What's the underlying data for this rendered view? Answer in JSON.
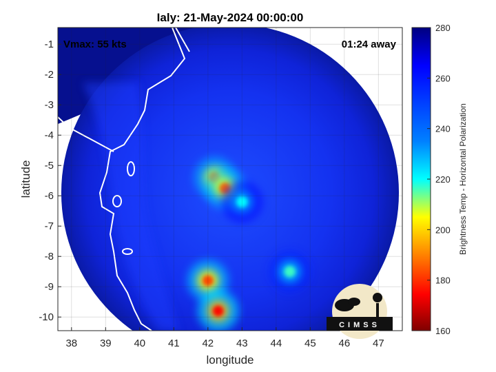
{
  "chart_data": {
    "type": "heatmap",
    "title": "Ialy: 21-May-2024 00:00:00",
    "xlabel": "longitude",
    "ylabel": "latitude",
    "xlim": [
      37.6,
      47.7
    ],
    "ylim": [
      -10.45,
      -0.45
    ],
    "xticks": [
      38,
      39,
      40,
      41,
      42,
      43,
      44,
      45,
      46,
      47
    ],
    "yticks": [
      -1,
      -2,
      -3,
      -4,
      -5,
      -6,
      -7,
      -8,
      -9,
      -10
    ],
    "grid": true,
    "annotations": {
      "vmax": "Vmax: 55 kts",
      "away": "01:24 away"
    },
    "colorbar": {
      "label": "Brightness Temp - Horizontal Polarization",
      "range": [
        160,
        280
      ],
      "ticks": [
        280,
        260,
        240,
        220,
        200,
        180,
        160
      ],
      "colormap": [
        "#7f0000",
        "#ff0000",
        "#ffff00",
        "#00ffff",
        "#0080ff",
        "#0000ff",
        "#00007f"
      ]
    },
    "swath_center": [
      42.65,
      -5.9
    ],
    "swath_radius_deg": 4.95,
    "features": [
      {
        "lon": 42.2,
        "lat": -5.4,
        "value": 190
      },
      {
        "lon": 42.5,
        "lat": -5.75,
        "value": 188
      },
      {
        "lon": 42.0,
        "lat": -8.8,
        "value": 185
      },
      {
        "lon": 42.3,
        "lat": -9.8,
        "value": 180
      },
      {
        "lon": 44.4,
        "lat": -8.5,
        "value": 215
      },
      {
        "lon": 43.0,
        "lat": -6.2,
        "value": 220
      }
    ]
  },
  "logo": {
    "text": "CIMSS",
    "name": "cimss-logo"
  }
}
